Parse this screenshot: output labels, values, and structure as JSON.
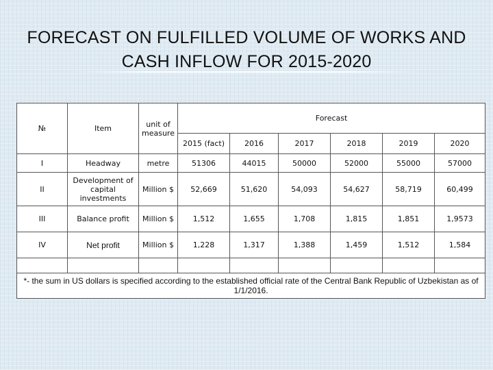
{
  "slide": {
    "title_line1": "FORECAST ON FULFILLED VOLUME OF WORKS AND",
    "title_line2": "CASH INFLOW FOR 2015-2020"
  },
  "table": {
    "header": {
      "no": "№",
      "item": "Item",
      "unit": "unit of measure",
      "forecast": "Forecast",
      "years": [
        "2015 (fact)",
        "2016",
        "2017",
        "2018",
        "2019",
        "2020"
      ]
    },
    "rows": [
      {
        "no": "I",
        "item": "Headway",
        "unit": "metre",
        "values": [
          "51306",
          "44015",
          "50000",
          "52000",
          "55000",
          "57000"
        ]
      },
      {
        "no": "II",
        "item": "Development of capital investments",
        "unit": "Million $",
        "values": [
          "52,669",
          "51,620",
          "54,093",
          "54,627",
          "58,719",
          "60,499"
        ]
      },
      {
        "no": "III",
        "item": "Balance profit",
        "unit": "Million $",
        "values": [
          "1,512",
          "1,655",
          "1,708",
          "1,815",
          "1,851",
          "1,9573"
        ]
      },
      {
        "no": "IV",
        "item": "Net profit",
        "unit": "Million $",
        "values": [
          "1,228",
          "1,317",
          "1,388",
          "1,459",
          "1,512",
          "1,584"
        ]
      }
    ],
    "footnote": "*- the sum in US dollars is specified according to the established official rate of the Central Bank Republic of Uzbekistan as of 1/1/2016."
  }
}
